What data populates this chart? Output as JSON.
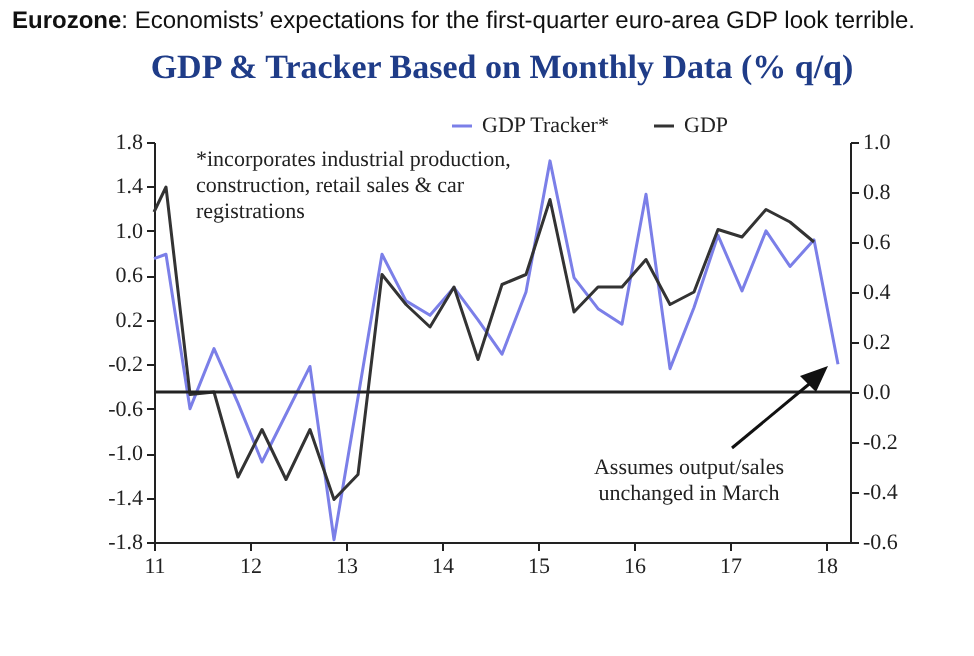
{
  "chart_data": {
    "type": "line",
    "title": "Eurozone: Economists’ expectations for the first-quarter euro-area GDP look terrible.",
    "subtitle": "GDP & Tracker Based on Monthly Data (% q/q)",
    "x": [
      2011,
      2011.125,
      2011.375,
      2011.625,
      2011.875,
      2012.125,
      2012.375,
      2012.625,
      2012.875,
      2013.125,
      2013.375,
      2013.625,
      2013.875,
      2014.125,
      2014.375,
      2014.625,
      2014.875,
      2015.125,
      2015.375,
      2015.625,
      2015.875,
      2016.125,
      2016.375,
      2016.625,
      2016.875,
      2017.125,
      2017.375,
      2017.625,
      2017.875,
      2018.125
    ],
    "series": [
      {
        "name": "GDP Tracker*",
        "color": "#7b7fe8",
        "values": [
          0.75,
          0.79,
          -0.6,
          -0.06,
          -0.55,
          -1.08,
          -0.65,
          -0.22,
          -1.78,
          -0.5,
          0.79,
          0.37,
          0.24,
          0.49,
          0.2,
          -0.11,
          0.45,
          1.63,
          0.58,
          0.3,
          0.16,
          1.33,
          -0.24,
          0.31,
          0.96,
          0.46,
          1.0,
          0.68,
          0.92,
          -0.2
        ]
      },
      {
        "name": "GDP",
        "color": "#333333",
        "axis": "y2",
        "values": [
          0.72,
          0.82,
          -0.01,
          0.0,
          -0.34,
          -0.15,
          -0.35,
          -0.15,
          -0.43,
          -0.33,
          0.47,
          0.35,
          0.26,
          0.42,
          0.13,
          0.43,
          0.47,
          0.77,
          0.32,
          0.42,
          0.42,
          0.53,
          0.35,
          0.4,
          0.65,
          0.62,
          0.73,
          0.68,
          0.6,
          null
        ]
      }
    ],
    "xlim": [
      2011,
      2018.25
    ],
    "xticks": [
      {
        "value": 2011,
        "label": "11"
      },
      {
        "value": 2012,
        "label": "12"
      },
      {
        "value": 2013,
        "label": "13"
      },
      {
        "value": 2014,
        "label": "14"
      },
      {
        "value": 2015,
        "label": "15"
      },
      {
        "value": 2016,
        "label": "16"
      },
      {
        "value": 2017,
        "label": "17"
      },
      {
        "value": 2018,
        "label": "18"
      }
    ],
    "ylim": [
      -1.8,
      1.8
    ],
    "yticks": [
      {
        "value": -1.8,
        "label": "-1.8"
      },
      {
        "value": -1.4,
        "label": "-1.4"
      },
      {
        "value": -1,
        "label": "-1.0"
      },
      {
        "value": -0.6,
        "label": "-0.6"
      },
      {
        "value": -0.2,
        "label": "-0.2"
      },
      {
        "value": 0.2,
        "label": "0.2"
      },
      {
        "value": 0.6,
        "label": "0.6"
      },
      {
        "value": 1,
        "label": "1.0"
      },
      {
        "value": 1.4,
        "label": "1.4"
      },
      {
        "value": 1.8,
        "label": "1.8"
      }
    ],
    "y2lim": [
      -0.6,
      1.0
    ],
    "y2ticks": [
      {
        "value": -0.6,
        "label": "-0.6"
      },
      {
        "value": -0.4,
        "label": "-0.4"
      },
      {
        "value": -0.2,
        "label": "-0.2"
      },
      {
        "value": 0,
        "label": "0.0"
      },
      {
        "value": 0.2,
        "label": "0.2"
      },
      {
        "value": 0.4,
        "label": "0.4"
      },
      {
        "value": 0.6,
        "label": "0.6"
      },
      {
        "value": 0.8,
        "label": "0.8"
      },
      {
        "value": 1,
        "label": "1.0"
      }
    ],
    "ref_lines": [
      {
        "axis": "y2",
        "value": 0,
        "color": "#222222"
      }
    ],
    "annotations": [
      "*incorporates industrial production, construction, retail sales & car registrations",
      "Assumes output/sales unchanged in March"
    ],
    "legend": "top right",
    "grid": false
  }
}
